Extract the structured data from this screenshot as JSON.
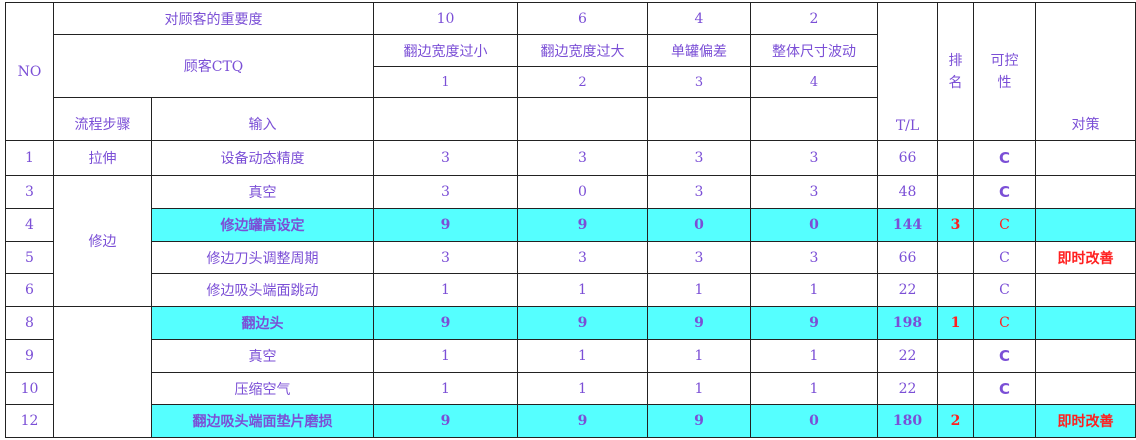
{
  "header": {
    "no": "NO",
    "importance_label": "对顾客的重要度",
    "ctq_label": "顾客CTQ",
    "step_label": "流程步骤",
    "input_label": "输入",
    "tl_label": "T/L",
    "rank_label": "排名",
    "control_label": "可控性",
    "action_label": "对策",
    "ctq": [
      {
        "importance": "10",
        "name": "翻边宽度过小",
        "index": "1"
      },
      {
        "importance": "6",
        "name": "翻边宽度过大",
        "index": "2"
      },
      {
        "importance": "4",
        "name": "单罐偏差",
        "index": "3"
      },
      {
        "importance": "2",
        "name": "整体尺寸波动",
        "index": "4"
      }
    ]
  },
  "steps": {
    "stretch": "拉伸",
    "trim": "修边"
  },
  "rows": [
    {
      "no": "1",
      "input": "设备动态精度",
      "scores": [
        "3",
        "3",
        "3",
        "3"
      ],
      "tl": "66",
      "rank": "",
      "control": "C",
      "action": ""
    },
    {
      "no": "3",
      "input": "真空",
      "scores": [
        "3",
        "0",
        "3",
        "3"
      ],
      "tl": "48",
      "rank": "",
      "control": "C",
      "action": ""
    },
    {
      "no": "4",
      "input": "修边罐高设定",
      "scores": [
        "9",
        "9",
        "0",
        "0"
      ],
      "tl": "144",
      "rank": "3",
      "control": "C",
      "action": ""
    },
    {
      "no": "5",
      "input": "修边刀头调整周期",
      "scores": [
        "3",
        "3",
        "3",
        "3"
      ],
      "tl": "66",
      "rank": "",
      "control": "C",
      "action": "即时改善"
    },
    {
      "no": "6",
      "input": "修边吸头端面跳动",
      "scores": [
        "1",
        "1",
        "1",
        "1"
      ],
      "tl": "22",
      "rank": "",
      "control": "C",
      "action": ""
    },
    {
      "no": "8",
      "input": "翻边头",
      "scores": [
        "9",
        "9",
        "9",
        "9"
      ],
      "tl": "198",
      "rank": "1",
      "control": "C",
      "action": ""
    },
    {
      "no": "9",
      "input": "真空",
      "scores": [
        "1",
        "1",
        "1",
        "1"
      ],
      "tl": "22",
      "rank": "",
      "control": "C",
      "action": ""
    },
    {
      "no": "10",
      "input": "压缩空气",
      "scores": [
        "1",
        "1",
        "1",
        "1"
      ],
      "tl": "22",
      "rank": "",
      "control": "C",
      "action": ""
    },
    {
      "no": "12",
      "input": "翻边吸头端面垫片磨损",
      "scores": [
        "9",
        "9",
        "9",
        "0"
      ],
      "tl": "180",
      "rank": "2",
      "control": "",
      "action": "即时改善"
    }
  ],
  "colors": {
    "highlight": "#55ffff",
    "text": "#7b4fd6",
    "alert": "#ff2020"
  }
}
